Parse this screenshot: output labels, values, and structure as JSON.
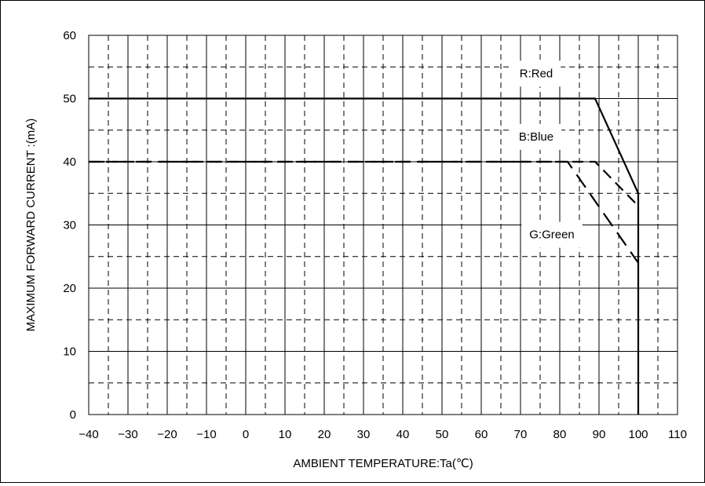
{
  "chart_data": {
    "type": "line",
    "title": "",
    "xlabel": "AMBIENT TEMPERATURE:Ta(℃)",
    "ylabel": "MAXIMUM FORWARD CURRENT :(mA)",
    "xlim": [
      -40,
      110
    ],
    "ylim": [
      0,
      60
    ],
    "xticks": [
      -40,
      -30,
      -20,
      -10,
      0,
      10,
      20,
      30,
      40,
      50,
      60,
      70,
      80,
      90,
      100,
      110
    ],
    "yticks": [
      0,
      10,
      20,
      30,
      40,
      50,
      60
    ],
    "x_tick_labels": [
      "−40",
      "−30",
      "−20",
      "−10",
      "0",
      "10",
      "20",
      "30",
      "40",
      "50",
      "60",
      "70",
      "80",
      "90",
      "100",
      "110"
    ],
    "y_tick_labels": [
      "0",
      "10",
      "20",
      "30",
      "40",
      "50",
      "60"
    ],
    "grid": true,
    "grid_minor": true,
    "series": [
      {
        "name": "R:Red",
        "line_style": "solid",
        "x": [
          -40,
          89,
          100,
          100
        ],
        "y": [
          50,
          50,
          35,
          0
        ]
      },
      {
        "name": "B:Blue",
        "line_style": "dash",
        "x": [
          -40,
          89,
          100
        ],
        "y": [
          40,
          40,
          33
        ]
      },
      {
        "name": "G:Green",
        "line_style": "longdash",
        "x": [
          -40,
          82,
          100
        ],
        "y": [
          40,
          40,
          24
        ]
      }
    ],
    "annotations": [
      {
        "text": "R:Red",
        "x": 74,
        "y": 54
      },
      {
        "text": "B:Blue",
        "x": 74,
        "y": 44
      },
      {
        "text": "G:Green",
        "x": 78,
        "y": 28.5
      }
    ],
    "colors": {
      "line": "#000000",
      "grid": "#000000",
      "background": "#ffffff"
    }
  }
}
